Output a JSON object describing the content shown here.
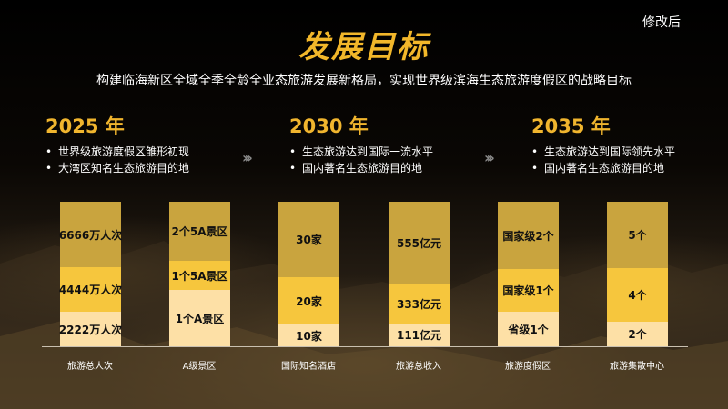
{
  "top_label": "修改后",
  "title": "发展目标",
  "subtitle": "构建临海新区全域全季全龄全业态旅游发展新格局，实现世界级滨海生态旅游度假区的战略目标",
  "phases": [
    {
      "year": "2025 年",
      "bullets": [
        "世界级旅游度假区雏形初现",
        "大湾区知名生态旅游目的地"
      ]
    },
    {
      "year": "2030 年",
      "bullets": [
        "生态旅游达到国际一流水平",
        "国内著名生态旅游目的地"
      ]
    },
    {
      "year": "2035 年",
      "bullets": [
        "生态旅游达到国际领先水平",
        "国内著名生态旅游目的地"
      ]
    }
  ],
  "arrow_glyph": "›››",
  "colors": {
    "accent": "#f2b72a",
    "dark": "#c9a43e",
    "mid": "#f6c63d",
    "light": "#fde0a6"
  },
  "columns": [
    {
      "label": "旅游总人次",
      "segments": [
        "2222万人次",
        "4444万人次",
        "6666万人次"
      ]
    },
    {
      "label": "A级景区",
      "segments": [
        "1个A景区",
        "1个5A景区",
        "2个5A景区"
      ]
    },
    {
      "label": "国际知名酒店",
      "segments": [
        "10家",
        "20家",
        "30家"
      ]
    },
    {
      "label": "旅游总收入",
      "segments": [
        "111亿元",
        "333亿元",
        "555亿元"
      ]
    },
    {
      "label": "旅游度假区",
      "segments": [
        "省级1个",
        "国家级1个",
        "国家级2个"
      ]
    },
    {
      "label": "旅游集散中心",
      "segments": [
        "2个",
        "4个",
        "5个"
      ]
    }
  ]
}
